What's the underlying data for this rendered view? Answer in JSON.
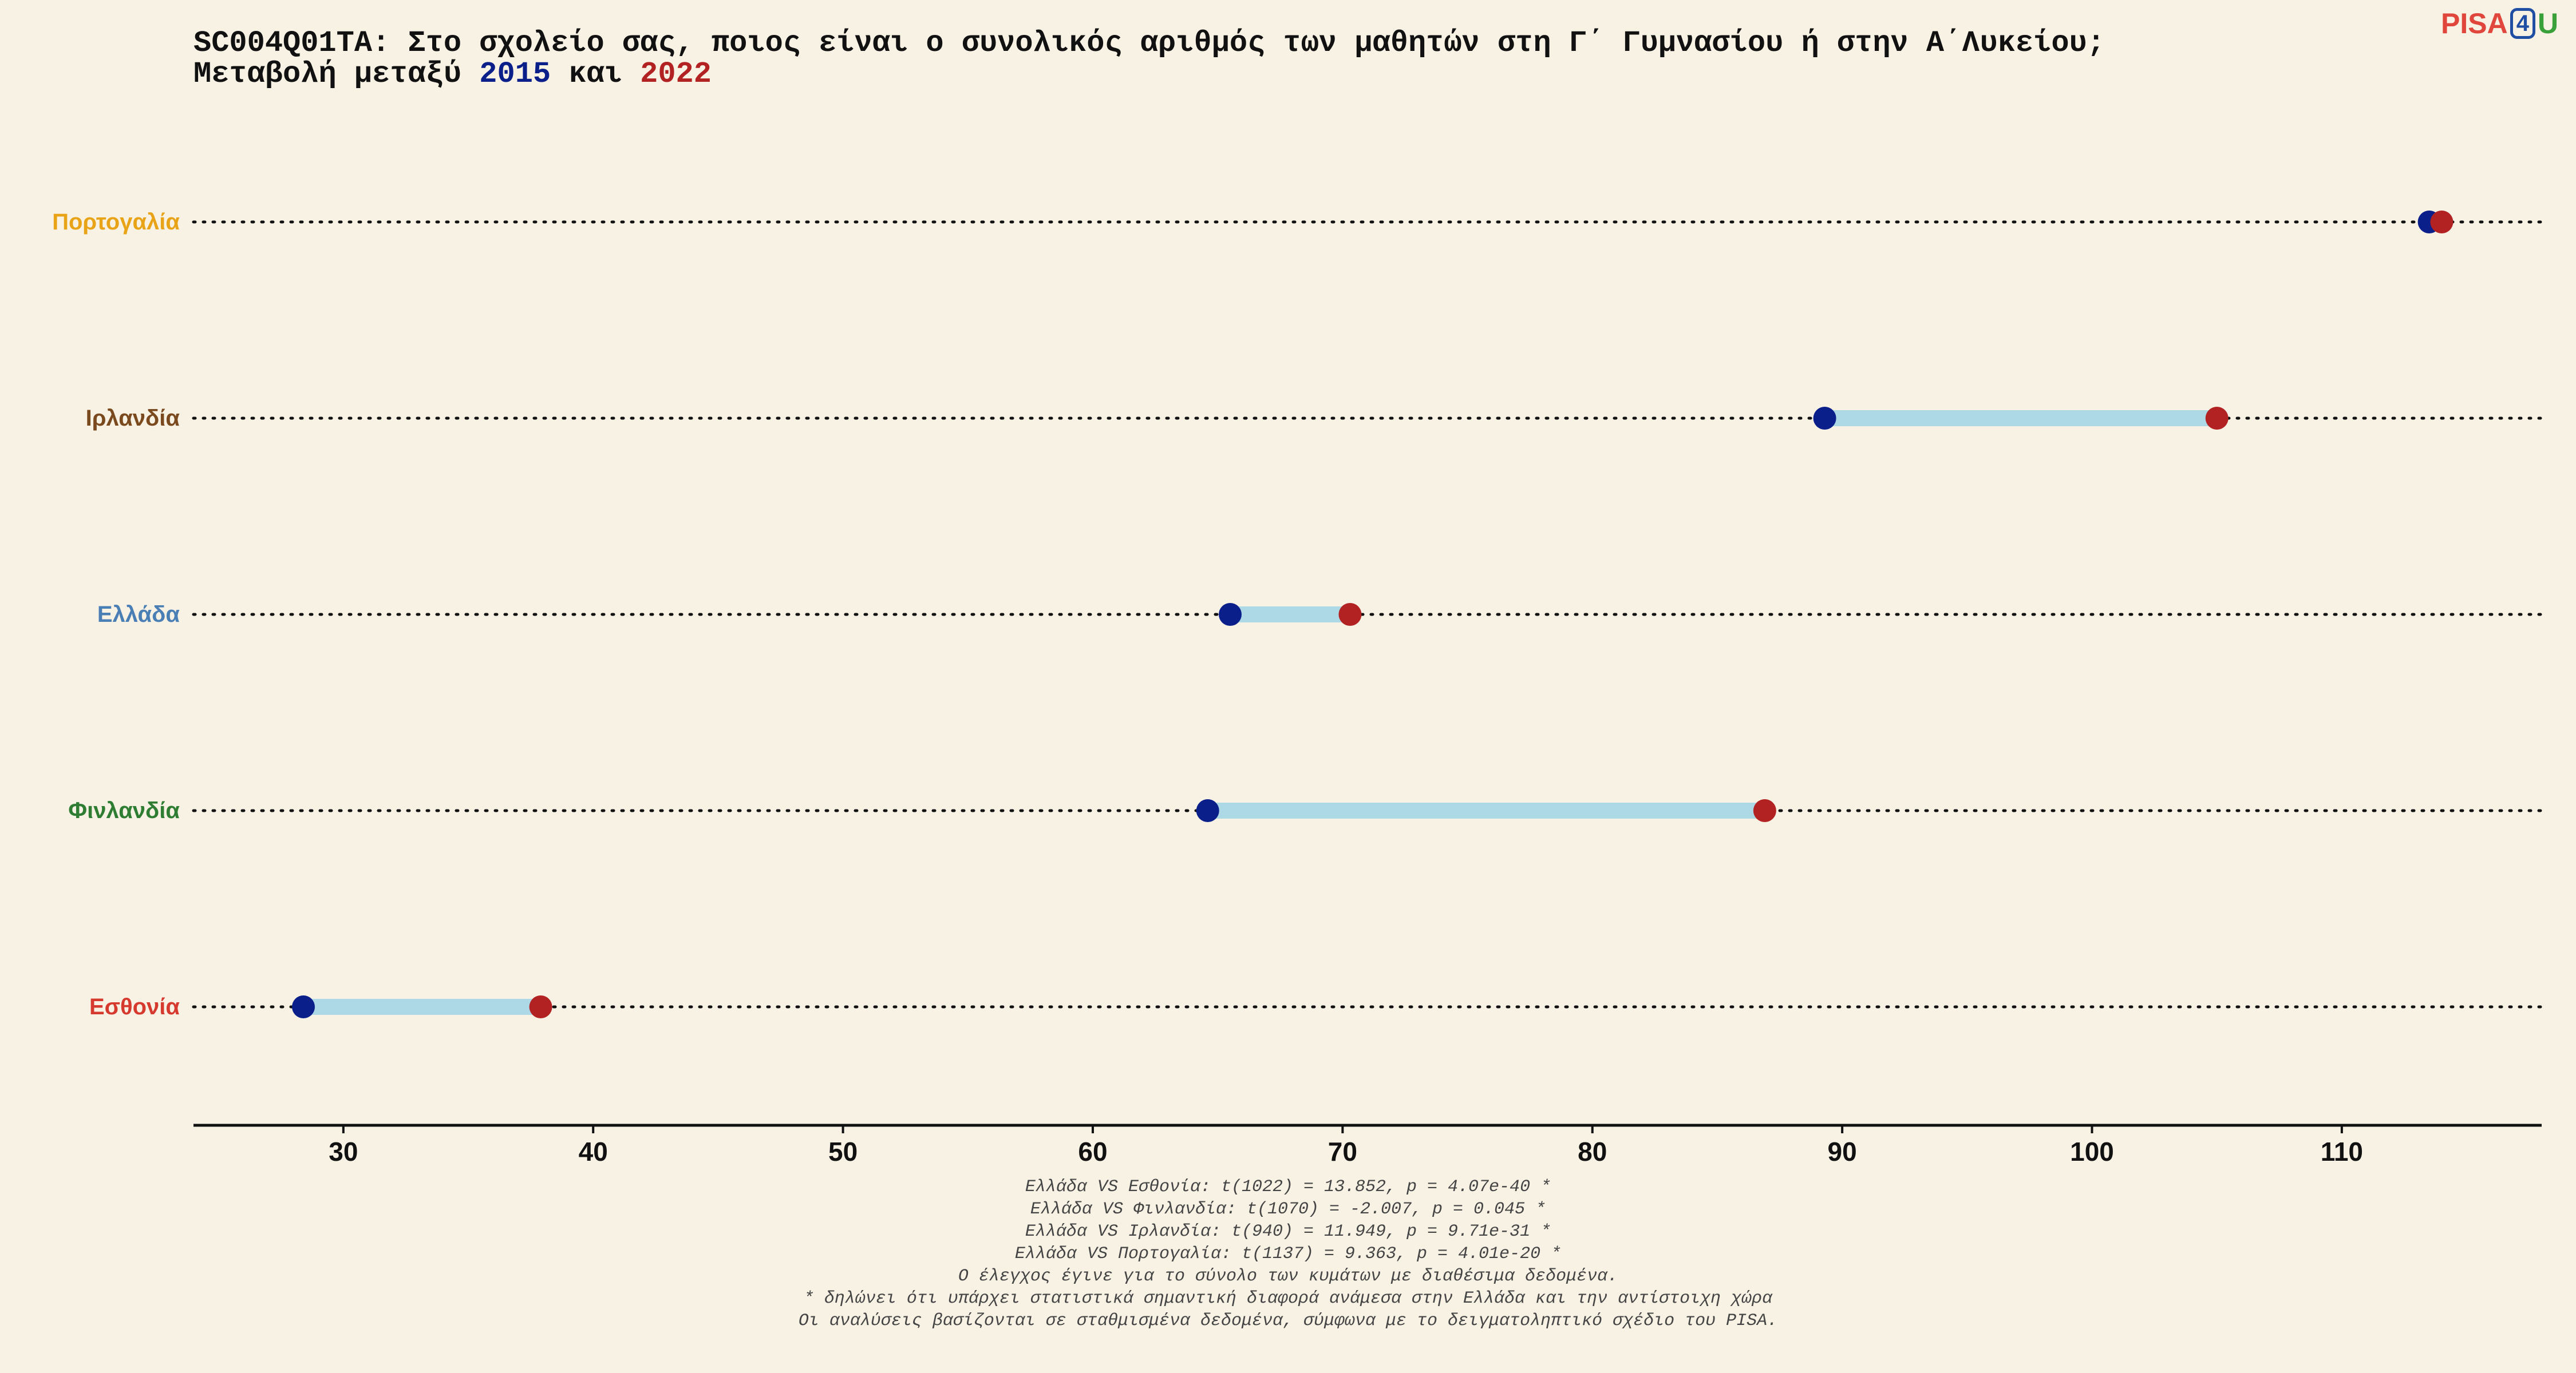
{
  "title": {
    "line1": "SC004Q01TA: Στο σχολείο σας, ποιος είναι ο συνολικός αριθμός των μαθητών στη Γ΄ Γυμνασίου ή στην Α΄Λυκείου;",
    "line2_prefix": "Μεταβολή μεταξύ ",
    "year1": "2015",
    "line2_mid": " και ",
    "year2": "2022"
  },
  "logo": {
    "part1": "PISA",
    "part2": "4",
    "part3": "U"
  },
  "chart_data": {
    "type": "dumbbell",
    "categories": [
      "Πορτογαλία",
      "Ιρλανδία",
      "Ελλάδα",
      "Φινλανδία",
      "Εσθονία"
    ],
    "category_colors": [
      "#e8a317",
      "#7a4a1e",
      "#4a7fb5",
      "#2e7d32",
      "#d63a2f"
    ],
    "series": [
      {
        "name": "2015",
        "color": "#0a1f8a",
        "values": [
          113.5,
          89.3,
          65.5,
          64.6,
          28.4
        ]
      },
      {
        "name": "2022",
        "color": "#b22222",
        "values": [
          114.0,
          105.0,
          70.3,
          86.9,
          37.9
        ]
      }
    ],
    "connector_color": "#add8e6",
    "xlim": [
      24,
      118
    ],
    "xticks": [
      30,
      40,
      50,
      60,
      70,
      80,
      90,
      100,
      110
    ],
    "xlabel": "",
    "ylabel": ""
  },
  "footnotes": [
    "Ελλάδα VS Εσθονία: t(1022) = 13.852, p = 4.07e-40 *",
    "Ελλάδα VS Φινλανδία: t(1070) = -2.007, p = 0.045 *",
    "Ελλάδα VS Ιρλανδία: t(940) = 11.949, p = 9.71e-31 *",
    "Ελλάδα VS Πορτογαλία: t(1137) = 9.363, p = 4.01e-20 *",
    "Ο έλεγχος έγινε για το σύνολο των κυμάτων με διαθέσιμα δεδομένα.",
    "* δηλώνει ότι υπάρχει στατιστικά σημαντική διαφορά ανάμεσα στην Ελλάδα και την αντίστοιχη χώρα",
    "Οι αναλύσεις βασίζονται σε σταθμισμένα δεδομένα, σύμφωνα με το δειγματοληπτικό σχέδιο του PISA."
  ]
}
